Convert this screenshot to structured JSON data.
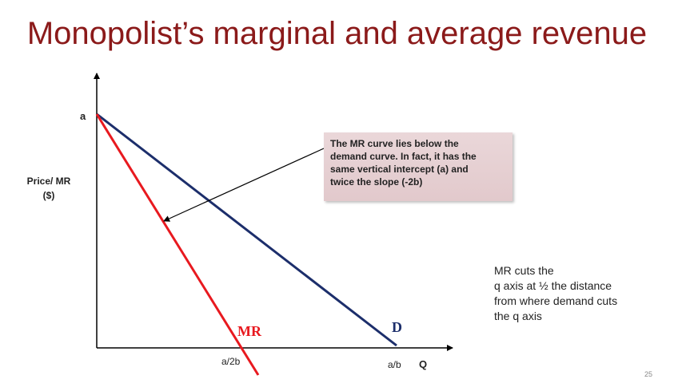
{
  "title": "Monopolist’s marginal and average revenue",
  "axes": {
    "y_label_lines": [
      "Price/ MR",
      "($)"
    ],
    "x_label": "Q",
    "y_intercept_label": "a",
    "mr_intercept_label": "a/2b",
    "d_intercept_label": "a/b"
  },
  "curves": {
    "mr_label": "MR",
    "d_label": "D",
    "mr_color": "#e8191f",
    "d_color": "#1c2e6b"
  },
  "callout": {
    "lines": [
      "The MR curve lies below the",
      "demand curve. In fact, it has the",
      "same vertical intercept (a) and",
      "twice the slope (-2b)"
    ]
  },
  "note": {
    "lines": [
      "MR cuts the",
      "q axis at ½ the distance",
      "from where demand cuts",
      "the q axis"
    ]
  },
  "page_number": "25"
}
